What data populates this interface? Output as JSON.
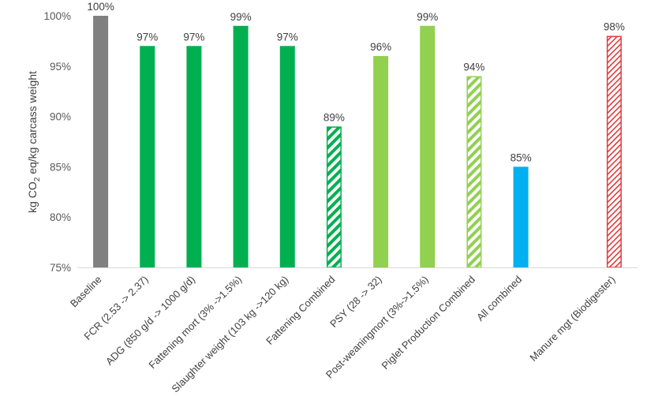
{
  "chart_data": {
    "type": "bar",
    "title": "",
    "xlabel": "",
    "ylabel": {
      "pre": "kg CO",
      "sub": "2",
      "post": " eq/kg carcass weight"
    },
    "ylim": [
      75,
      100
    ],
    "yticks": [
      "75%",
      "80%",
      "85%",
      "90%",
      "95%",
      "100%"
    ],
    "grid": false,
    "legend": "none",
    "categories": [
      "Baseline",
      "FCR (2.53 -> 2.37)",
      "ADG (850 g/d -> 1000 g/d)",
      "Fattening mort (3% ->1.5%)",
      "Slaughter weight (103 kg ->120 kg)",
      "Fattening Combined",
      "PSY (28 -> 32)",
      "Post-weaningmort (3%->1.5%)",
      "Piglet Production Combined",
      "All combined",
      "",
      "Manure mgt (Biodigester)"
    ],
    "values": [
      100,
      97,
      97,
      99,
      97,
      89,
      96,
      99,
      94,
      85,
      null,
      98
    ],
    "data_labels": [
      "100%",
      "97%",
      "97%",
      "99%",
      "97%",
      "89%",
      "96%",
      "99%",
      "94%",
      "85%",
      "",
      "98%"
    ],
    "bar_styles": [
      {
        "fill": "#808080",
        "pattern": "solid"
      },
      {
        "fill": "#00b050",
        "pattern": "solid"
      },
      {
        "fill": "#00b050",
        "pattern": "solid"
      },
      {
        "fill": "#00b050",
        "pattern": "solid"
      },
      {
        "fill": "#00b050",
        "pattern": "solid"
      },
      {
        "fill": "#00b050",
        "pattern": "hatch"
      },
      {
        "fill": "#92d050",
        "pattern": "solid"
      },
      {
        "fill": "#92d050",
        "pattern": "solid"
      },
      {
        "fill": "#92d050",
        "pattern": "hatch"
      },
      {
        "fill": "#00b0f0",
        "pattern": "solid"
      },
      null,
      {
        "fill": "#e03c3c",
        "pattern": "hatch-thin"
      }
    ]
  }
}
